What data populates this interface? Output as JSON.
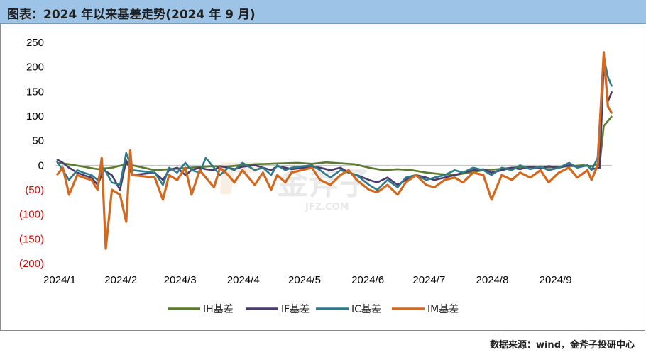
{
  "title": "图表：2024 年以来基差走势(2024 年 9 月)",
  "source": "数据来源：wind，金斧子投研中心",
  "watermark": {
    "text": "金斧子",
    "sub": "JFZ.COM"
  },
  "colors": {
    "IH": "#5B7B2E",
    "IF": "#4A3B6E",
    "IC": "#2E7A8A",
    "IM": "#D2691E",
    "negative_label": "#E00000"
  },
  "chart_data": {
    "type": "line",
    "title": "",
    "xlabel": "",
    "ylabel": "",
    "ylim": [
      -200,
      250
    ],
    "yticks": [
      250,
      200,
      150,
      100,
      50,
      0,
      -50,
      -100,
      -150,
      -200
    ],
    "ytick_labels": [
      "250",
      "200",
      "150",
      "100",
      "50",
      "0",
      "(50)",
      "(100)",
      "(150)",
      "(200)"
    ],
    "x_range": [
      "2024-01-02",
      "2024-09-30"
    ],
    "xticks": [
      {
        "date": "2024-01-01",
        "label": "2024/1"
      },
      {
        "date": "2024-02-01",
        "label": "2024/2"
      },
      {
        "date": "2024-03-01",
        "label": "2024/3"
      },
      {
        "date": "2024-04-01",
        "label": "2024/4"
      },
      {
        "date": "2024-05-01",
        "label": "2024/5"
      },
      {
        "date": "2024-06-01",
        "label": "2024/6"
      },
      {
        "date": "2024-07-01",
        "label": "2024/7"
      },
      {
        "date": "2024-08-01",
        "label": "2024/8"
      },
      {
        "date": "2024-09-01",
        "label": "2024/9"
      }
    ],
    "legend_position": "bottom",
    "series": [
      {
        "name": "IH基差",
        "key": "IH",
        "points": [
          [
            "2024-01-02",
            5
          ],
          [
            "2024-01-08",
            2
          ],
          [
            "2024-01-15",
            -3
          ],
          [
            "2024-01-22",
            -8
          ],
          [
            "2024-01-29",
            -5
          ],
          [
            "2024-02-05",
            2
          ],
          [
            "2024-02-08",
            0
          ],
          [
            "2024-02-19",
            -10
          ],
          [
            "2024-02-26",
            -8
          ],
          [
            "2024-03-04",
            -6
          ],
          [
            "2024-03-11",
            -4
          ],
          [
            "2024-03-18",
            -2
          ],
          [
            "2024-03-25",
            -3
          ],
          [
            "2024-04-01",
            0
          ],
          [
            "2024-04-08",
            2
          ],
          [
            "2024-04-15",
            3
          ],
          [
            "2024-04-22",
            4
          ],
          [
            "2024-04-29",
            5
          ],
          [
            "2024-05-06",
            3
          ],
          [
            "2024-05-13",
            6
          ],
          [
            "2024-05-20",
            4
          ],
          [
            "2024-05-27",
            2
          ],
          [
            "2024-06-03",
            -5
          ],
          [
            "2024-06-10",
            -10
          ],
          [
            "2024-06-17",
            -8
          ],
          [
            "2024-06-24",
            -10
          ],
          [
            "2024-07-01",
            -15
          ],
          [
            "2024-07-08",
            -18
          ],
          [
            "2024-07-15",
            -20
          ],
          [
            "2024-07-22",
            -15
          ],
          [
            "2024-07-29",
            -10
          ],
          [
            "2024-08-05",
            -8
          ],
          [
            "2024-08-12",
            -5
          ],
          [
            "2024-08-19",
            -3
          ],
          [
            "2024-08-26",
            -5
          ],
          [
            "2024-09-02",
            -4
          ],
          [
            "2024-09-09",
            -2
          ],
          [
            "2024-09-16",
            0
          ],
          [
            "2024-09-20",
            -2
          ],
          [
            "2024-09-24",
            2
          ],
          [
            "2024-09-26",
            80
          ],
          [
            "2024-09-30",
            100
          ]
        ]
      },
      {
        "name": "IF基差",
        "key": "IF",
        "points": [
          [
            "2024-01-02",
            12
          ],
          [
            "2024-01-05",
            5
          ],
          [
            "2024-01-08",
            -5
          ],
          [
            "2024-01-12",
            -15
          ],
          [
            "2024-01-15",
            -20
          ],
          [
            "2024-01-19",
            -25
          ],
          [
            "2024-01-22",
            -40
          ],
          [
            "2024-01-25",
            -10
          ],
          [
            "2024-01-29",
            -20
          ],
          [
            "2024-02-02",
            -50
          ],
          [
            "2024-02-05",
            10
          ],
          [
            "2024-02-08",
            -20
          ],
          [
            "2024-02-19",
            -15
          ],
          [
            "2024-02-23",
            -30
          ],
          [
            "2024-02-26",
            -10
          ],
          [
            "2024-03-01",
            -5
          ],
          [
            "2024-03-05",
            -20
          ],
          [
            "2024-03-08",
            -10
          ],
          [
            "2024-03-12",
            -5
          ],
          [
            "2024-03-15",
            -8
          ],
          [
            "2024-03-19",
            -10
          ],
          [
            "2024-03-22",
            -2
          ],
          [
            "2024-03-26",
            -5
          ],
          [
            "2024-03-29",
            -8
          ],
          [
            "2024-04-02",
            -3
          ],
          [
            "2024-04-08",
            0
          ],
          [
            "2024-04-12",
            -5
          ],
          [
            "2024-04-16",
            -10
          ],
          [
            "2024-04-19",
            -2
          ],
          [
            "2024-04-23",
            -5
          ],
          [
            "2024-04-26",
            -8
          ],
          [
            "2024-05-06",
            -3
          ],
          [
            "2024-05-10",
            -5
          ],
          [
            "2024-05-15",
            -10
          ],
          [
            "2024-05-20",
            -5
          ],
          [
            "2024-05-24",
            -15
          ],
          [
            "2024-05-28",
            -20
          ],
          [
            "2024-06-03",
            -30
          ],
          [
            "2024-06-07",
            -35
          ],
          [
            "2024-06-12",
            -25
          ],
          [
            "2024-06-17",
            -40
          ],
          [
            "2024-06-21",
            -30
          ],
          [
            "2024-06-26",
            -20
          ],
          [
            "2024-07-01",
            -25
          ],
          [
            "2024-07-05",
            -30
          ],
          [
            "2024-07-10",
            -25
          ],
          [
            "2024-07-15",
            -20
          ],
          [
            "2024-07-19",
            -15
          ],
          [
            "2024-07-24",
            -10
          ],
          [
            "2024-07-29",
            -8
          ],
          [
            "2024-08-02",
            -15
          ],
          [
            "2024-08-07",
            -10
          ],
          [
            "2024-08-12",
            -5
          ],
          [
            "2024-08-16",
            -8
          ],
          [
            "2024-08-21",
            -3
          ],
          [
            "2024-08-26",
            -6
          ],
          [
            "2024-08-30",
            -2
          ],
          [
            "2024-09-04",
            -5
          ],
          [
            "2024-09-09",
            0
          ],
          [
            "2024-09-13",
            -3
          ],
          [
            "2024-09-18",
            -1
          ],
          [
            "2024-09-20",
            -8
          ],
          [
            "2024-09-24",
            -5
          ],
          [
            "2024-09-26",
            210
          ],
          [
            "2024-09-28",
            130
          ],
          [
            "2024-09-30",
            150
          ]
        ]
      },
      {
        "name": "IC基差",
        "key": "IC",
        "points": [
          [
            "2024-01-02",
            8
          ],
          [
            "2024-01-05",
            -10
          ],
          [
            "2024-01-08",
            -30
          ],
          [
            "2024-01-12",
            -10
          ],
          [
            "2024-01-15",
            -15
          ],
          [
            "2024-01-19",
            -20
          ],
          [
            "2024-01-22",
            -30
          ],
          [
            "2024-01-25",
            -5
          ],
          [
            "2024-01-29",
            -35
          ],
          [
            "2024-02-02",
            -40
          ],
          [
            "2024-02-05",
            25
          ],
          [
            "2024-02-08",
            -10
          ],
          [
            "2024-02-19",
            -15
          ],
          [
            "2024-02-23",
            -40
          ],
          [
            "2024-02-26",
            -5
          ],
          [
            "2024-03-01",
            -15
          ],
          [
            "2024-03-05",
            5
          ],
          [
            "2024-03-08",
            -10
          ],
          [
            "2024-03-12",
            -15
          ],
          [
            "2024-03-15",
            15
          ],
          [
            "2024-03-19",
            -5
          ],
          [
            "2024-03-22",
            -20
          ],
          [
            "2024-03-26",
            -5
          ],
          [
            "2024-03-29",
            -10
          ],
          [
            "2024-04-02",
            5
          ],
          [
            "2024-04-08",
            -10
          ],
          [
            "2024-04-12",
            -5
          ],
          [
            "2024-04-16",
            -20
          ],
          [
            "2024-04-19",
            0
          ],
          [
            "2024-04-23",
            -10
          ],
          [
            "2024-04-26",
            -5
          ],
          [
            "2024-05-06",
            0
          ],
          [
            "2024-05-10",
            -10
          ],
          [
            "2024-05-15",
            -25
          ],
          [
            "2024-05-20",
            -10
          ],
          [
            "2024-05-24",
            -15
          ],
          [
            "2024-05-28",
            -20
          ],
          [
            "2024-06-03",
            -40
          ],
          [
            "2024-06-07",
            -50
          ],
          [
            "2024-06-12",
            -30
          ],
          [
            "2024-06-17",
            -45
          ],
          [
            "2024-06-21",
            -25
          ],
          [
            "2024-06-26",
            -20
          ],
          [
            "2024-07-01",
            -30
          ],
          [
            "2024-07-05",
            -25
          ],
          [
            "2024-07-10",
            -20
          ],
          [
            "2024-07-15",
            -10
          ],
          [
            "2024-07-19",
            -15
          ],
          [
            "2024-07-24",
            -5
          ],
          [
            "2024-07-29",
            -10
          ],
          [
            "2024-08-02",
            -20
          ],
          [
            "2024-08-07",
            -5
          ],
          [
            "2024-08-12",
            -10
          ],
          [
            "2024-08-16",
            0
          ],
          [
            "2024-08-21",
            -8
          ],
          [
            "2024-08-26",
            -3
          ],
          [
            "2024-08-30",
            -10
          ],
          [
            "2024-09-04",
            -5
          ],
          [
            "2024-09-09",
            5
          ],
          [
            "2024-09-13",
            -5
          ],
          [
            "2024-09-18",
            0
          ],
          [
            "2024-09-20",
            -10
          ],
          [
            "2024-09-23",
            15
          ],
          [
            "2024-09-26",
            220
          ],
          [
            "2024-09-28",
            180
          ],
          [
            "2024-09-30",
            160
          ]
        ]
      },
      {
        "name": "IM基差",
        "key": "IM",
        "points": [
          [
            "2024-01-02",
            -20
          ],
          [
            "2024-01-05",
            -5
          ],
          [
            "2024-01-08",
            -60
          ],
          [
            "2024-01-12",
            -20
          ],
          [
            "2024-01-15",
            -25
          ],
          [
            "2024-01-19",
            -30
          ],
          [
            "2024-01-22",
            -50
          ],
          [
            "2024-01-24",
            15
          ],
          [
            "2024-01-26",
            -170
          ],
          [
            "2024-01-29",
            -50
          ],
          [
            "2024-02-02",
            -60
          ],
          [
            "2024-02-05",
            -115
          ],
          [
            "2024-02-07",
            30
          ],
          [
            "2024-02-08",
            -20
          ],
          [
            "2024-02-19",
            -25
          ],
          [
            "2024-02-23",
            -70
          ],
          [
            "2024-02-26",
            -20
          ],
          [
            "2024-03-01",
            -30
          ],
          [
            "2024-03-05",
            -5
          ],
          [
            "2024-03-08",
            -60
          ],
          [
            "2024-03-12",
            -10
          ],
          [
            "2024-03-15",
            -25
          ],
          [
            "2024-03-19",
            -45
          ],
          [
            "2024-03-22",
            -5
          ],
          [
            "2024-03-26",
            -20
          ],
          [
            "2024-03-29",
            -35
          ],
          [
            "2024-04-02",
            -10
          ],
          [
            "2024-04-08",
            -40
          ],
          [
            "2024-04-12",
            -15
          ],
          [
            "2024-04-16",
            -50
          ],
          [
            "2024-04-19",
            -20
          ],
          [
            "2024-04-23",
            -35
          ],
          [
            "2024-04-26",
            -15
          ],
          [
            "2024-05-06",
            -5
          ],
          [
            "2024-05-10",
            -30
          ],
          [
            "2024-05-15",
            -40
          ],
          [
            "2024-05-20",
            -20
          ],
          [
            "2024-05-24",
            -10
          ],
          [
            "2024-05-28",
            -30
          ],
          [
            "2024-06-03",
            -50
          ],
          [
            "2024-06-07",
            -55
          ],
          [
            "2024-06-12",
            -40
          ],
          [
            "2024-06-17",
            -60
          ],
          [
            "2024-06-21",
            -35
          ],
          [
            "2024-06-26",
            -20
          ],
          [
            "2024-07-01",
            -40
          ],
          [
            "2024-07-05",
            -45
          ],
          [
            "2024-07-10",
            -30
          ],
          [
            "2024-07-15",
            -25
          ],
          [
            "2024-07-19",
            -35
          ],
          [
            "2024-07-24",
            -15
          ],
          [
            "2024-07-29",
            -20
          ],
          [
            "2024-08-02",
            -70
          ],
          [
            "2024-08-05",
            -40
          ],
          [
            "2024-08-07",
            -20
          ],
          [
            "2024-08-12",
            -30
          ],
          [
            "2024-08-16",
            -15
          ],
          [
            "2024-08-21",
            -25
          ],
          [
            "2024-08-26",
            -10
          ],
          [
            "2024-08-30",
            -35
          ],
          [
            "2024-09-04",
            -15
          ],
          [
            "2024-09-09",
            -5
          ],
          [
            "2024-09-13",
            -25
          ],
          [
            "2024-09-18",
            -10
          ],
          [
            "2024-09-20",
            -30
          ],
          [
            "2024-09-23",
            0
          ],
          [
            "2024-09-26",
            230
          ],
          [
            "2024-09-28",
            120
          ],
          [
            "2024-09-30",
            105
          ]
        ]
      }
    ]
  }
}
